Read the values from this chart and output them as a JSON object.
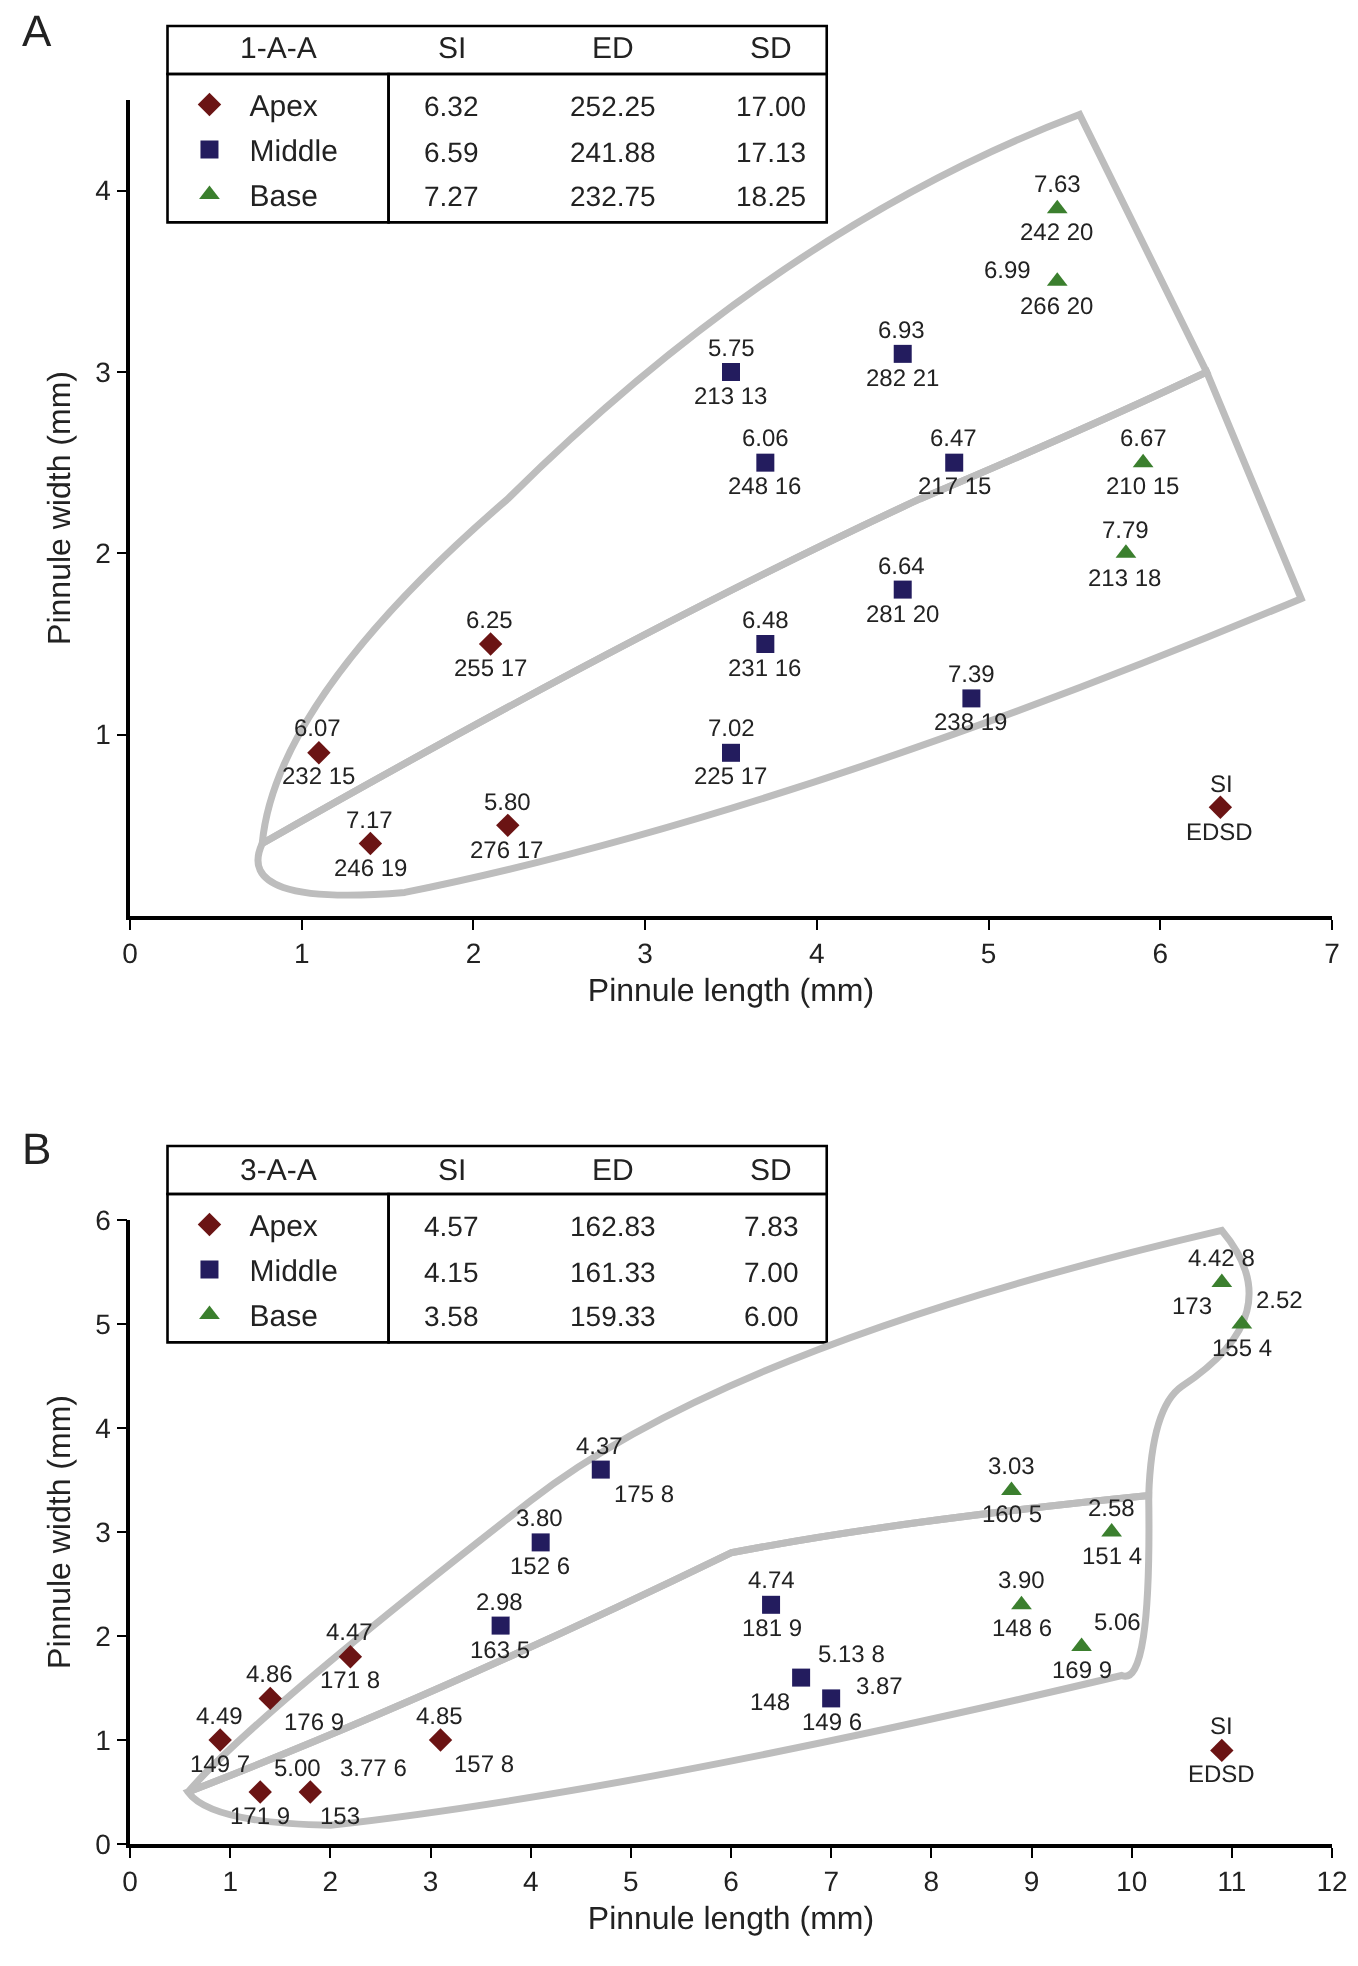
{
  "chart_data": [
    {
      "type": "scatter",
      "title": "A",
      "xlabel": "Pinnule length (mm)",
      "ylabel": "Pinnule width (mm)",
      "xlim": [
        0,
        7
      ],
      "xticks": [
        0,
        1,
        2,
        3,
        4,
        5,
        6,
        7
      ],
      "ylim": [
        0,
        4.5
      ],
      "yticks": [
        1,
        2,
        3,
        4
      ],
      "legend": "top left",
      "annotations": [
        "1-A-A",
        "SI",
        "ED",
        "SD",
        "6.32",
        "252.25",
        "17.00",
        "6.59",
        "241.88",
        "17.13",
        "7.27",
        "232.75",
        "18.25"
      ],
      "series": [
        {
          "name": "Apex",
          "color": "#6b1414",
          "marker": "diamond",
          "x": [
            1.1,
            1.4,
            2.1,
            2.2
          ],
          "values": [
            0.9,
            0.4,
            1.5,
            0.5
          ],
          "value_labels": [
            "6.07\n232 15",
            "7.17\n246 19",
            "6.25\n255 17",
            "5.80\n276 17"
          ]
        },
        {
          "name": "Middle",
          "color": "#231c5e",
          "marker": "square",
          "x": [
            3.5,
            3.7,
            4.5,
            4.9,
            3.5,
            3.7,
            4.5,
            4.8
          ],
          "values": [
            0.9,
            1.5,
            1.8,
            1.2,
            3.0,
            2.5,
            3.1,
            2.5
          ],
          "value_labels": [
            "7.02\n225 17",
            "6.48\n231 16",
            "6.64\n281 20",
            "7.39\n238 19",
            "5.75\n213 13",
            "6.06\n248 16",
            "6.93\n282 21",
            "6.47\n217 15"
          ]
        },
        {
          "name": "Base",
          "color": "#3b7f2e",
          "marker": "triangle",
          "x": [
            5.8,
            5.4,
            5.4,
            5.9
          ],
          "values": [
            2.0,
            3.9,
            3.5,
            2.5
          ],
          "value_labels": [
            "7.79\n213 18",
            "7.63\n242 20",
            "6.99\n266 20",
            "6.67\n210 15"
          ]
        },
        {
          "color": "#6b1414",
          "marker": "diamond",
          "x": [
            6.35
          ],
          "values": [
            0.6
          ],
          "value_labels": [
            "SI\nEDSD"
          ]
        }
      ]
    },
    {
      "type": "scatter",
      "title": "B",
      "xlabel": "Pinnule length (mm)",
      "ylabel": "Pinnule width (mm)",
      "xlim": [
        0,
        12
      ],
      "xticks": [
        0,
        1,
        2,
        3,
        4,
        5,
        6,
        7,
        8,
        9,
        10,
        11,
        12
      ],
      "ylim": [
        0,
        6
      ],
      "yticks": [
        0,
        1,
        2,
        3,
        4,
        5,
        6
      ],
      "legend": "top left",
      "annotations": [
        "3-A-A",
        "SI",
        "ED",
        "SD",
        "4.57",
        "162.83",
        "7.83",
        "4.15",
        "161.33",
        "7.00",
        "3.58",
        "159.33",
        "6.00"
      ],
      "series": [
        {
          "name": "Apex",
          "color": "#6b1414",
          "marker": "diamond",
          "x": [
            0.9,
            1.3,
            1.8,
            1.4,
            2.2,
            3.1
          ],
          "values": [
            1.0,
            0.5,
            0.5,
            1.4,
            1.8,
            1.0
          ],
          "value_labels": [
            "4.49\n149 7",
            "5.00\n171 9",
            "3.77 6\n153",
            "4.86\n176 9",
            "4.47\n171 8",
            "4.85\n157 8"
          ]
        },
        {
          "name": "Middle",
          "color": "#231c5e",
          "marker": "square",
          "x": [
            3.7,
            4.1,
            4.7,
            6.4,
            6.7,
            7.0
          ],
          "values": [
            2.1,
            2.9,
            3.6,
            2.3,
            1.6,
            1.4
          ],
          "value_labels": [
            "2.98\n163 5",
            "3.80\n152 6",
            "4.37\n175 8",
            "4.74\n181 9",
            "5.13 8\n148",
            "3.87\n149 6"
          ]
        },
        {
          "name": "Base",
          "color": "#3b7f2e",
          "marker": "triangle",
          "x": [
            8.8,
            9.8,
            8.9,
            9.5,
            10.9,
            11.1
          ],
          "values": [
            3.4,
            3.0,
            2.3,
            1.9,
            5.4,
            5.0
          ],
          "value_labels": [
            "3.03\n160 5",
            "2.58\n151 4",
            "3.90\n148 6",
            "5.06\n169 9",
            "4.42 8\n173",
            "2.52\n155 4"
          ]
        },
        {
          "color": "#6b1414",
          "marker": "diamond",
          "x": [
            10.9
          ],
          "values": [
            0.9
          ],
          "value_labels": [
            "SI\nEDSD"
          ]
        }
      ]
    }
  ]
}
